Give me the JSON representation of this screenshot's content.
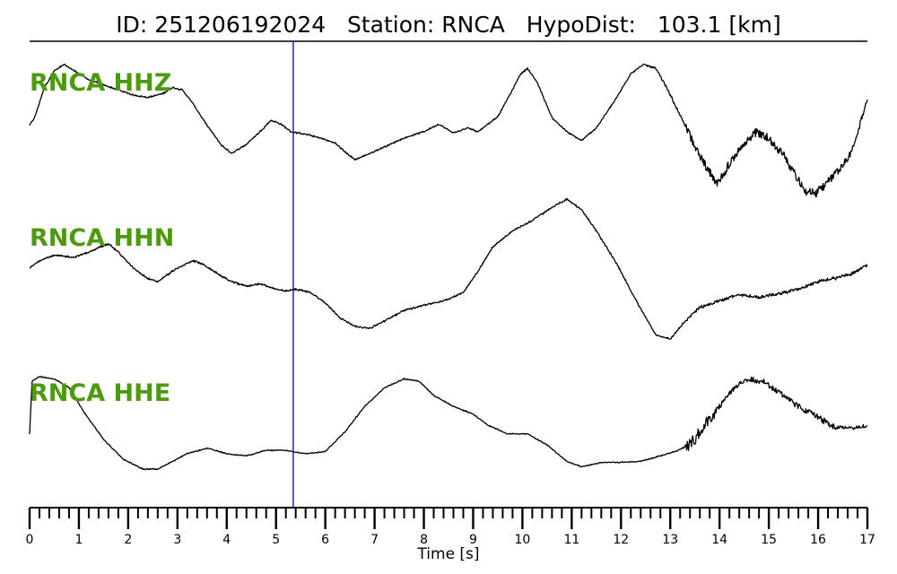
{
  "header": {
    "id_label": "ID:",
    "id_value": "251206192024",
    "station_label": "Station:",
    "station_value": "RNCA",
    "dist_label": "HypoDist:",
    "dist_value": "103.1",
    "dist_unit": "[km]"
  },
  "colors": {
    "trace": "#000000",
    "label": "#4c9a0e",
    "marker": "#1f1fd6"
  },
  "chart_data": {
    "type": "line",
    "xlabel": "Time [s]",
    "xlim": [
      0,
      17
    ],
    "major_ticks": [
      0,
      1,
      2,
      3,
      4,
      5,
      6,
      7,
      8,
      9,
      10,
      11,
      12,
      13,
      14,
      15,
      16,
      17
    ],
    "minor_tick_step": 0.2,
    "marker_time": 5.35,
    "series": [
      {
        "name": "RNCA HHZ",
        "noise": [
          [
            0,
            12.5,
            0.05
          ],
          [
            12.5,
            13.3,
            0.15
          ],
          [
            13.3,
            16.3,
            0.7
          ],
          [
            16.3,
            17,
            0.5
          ]
        ],
        "points": [
          [
            0,
            0.52
          ],
          [
            0.1,
            0.58
          ],
          [
            0.3,
            0.82
          ],
          [
            0.5,
            0.95
          ],
          [
            0.7,
            1.0
          ],
          [
            1.0,
            0.93
          ],
          [
            1.2,
            0.88
          ],
          [
            1.5,
            0.84
          ],
          [
            1.8,
            0.8
          ],
          [
            2.1,
            0.76
          ],
          [
            2.4,
            0.74
          ],
          [
            2.7,
            0.77
          ],
          [
            2.9,
            0.82
          ],
          [
            3.1,
            0.8
          ],
          [
            3.3,
            0.7
          ],
          [
            3.6,
            0.52
          ],
          [
            3.9,
            0.36
          ],
          [
            4.1,
            0.3
          ],
          [
            4.4,
            0.37
          ],
          [
            4.7,
            0.48
          ],
          [
            4.9,
            0.56
          ],
          [
            5.1,
            0.53
          ],
          [
            5.3,
            0.47
          ],
          [
            5.6,
            0.45
          ],
          [
            5.9,
            0.42
          ],
          [
            6.2,
            0.38
          ],
          [
            6.4,
            0.31
          ],
          [
            6.6,
            0.25
          ],
          [
            6.8,
            0.28
          ],
          [
            7.2,
            0.35
          ],
          [
            7.6,
            0.42
          ],
          [
            8.0,
            0.47
          ],
          [
            8.3,
            0.53
          ],
          [
            8.6,
            0.46
          ],
          [
            8.9,
            0.5
          ],
          [
            9.1,
            0.47
          ],
          [
            9.5,
            0.59
          ],
          [
            9.8,
            0.8
          ],
          [
            9.95,
            0.92
          ],
          [
            10.1,
            0.97
          ],
          [
            10.3,
            0.86
          ],
          [
            10.6,
            0.58
          ],
          [
            10.9,
            0.47
          ],
          [
            11.2,
            0.4
          ],
          [
            11.5,
            0.5
          ],
          [
            11.9,
            0.73
          ],
          [
            12.2,
            0.93
          ],
          [
            12.45,
            1.0
          ],
          [
            12.7,
            0.97
          ],
          [
            12.9,
            0.84
          ],
          [
            13.2,
            0.6
          ],
          [
            13.5,
            0.35
          ],
          [
            13.75,
            0.18
          ],
          [
            13.95,
            0.05
          ],
          [
            14.2,
            0.22
          ],
          [
            14.5,
            0.38
          ],
          [
            14.75,
            0.47
          ],
          [
            15.0,
            0.42
          ],
          [
            15.3,
            0.28
          ],
          [
            15.55,
            0.12
          ],
          [
            15.75,
            0.0
          ],
          [
            15.95,
            -0.02
          ],
          [
            16.2,
            0.08
          ],
          [
            16.5,
            0.2
          ],
          [
            16.7,
            0.33
          ],
          [
            16.9,
            0.6
          ],
          [
            17.0,
            0.72
          ]
        ]
      },
      {
        "name": "RNCA HHN",
        "noise": [
          [
            0,
            13.2,
            0.07
          ],
          [
            13.2,
            17,
            0.2
          ]
        ],
        "points": [
          [
            0,
            0.35
          ],
          [
            0.2,
            0.42
          ],
          [
            0.5,
            0.47
          ],
          [
            0.9,
            0.45
          ],
          [
            1.2,
            0.5
          ],
          [
            1.6,
            0.58
          ],
          [
            1.8,
            0.5
          ],
          [
            2.1,
            0.35
          ],
          [
            2.4,
            0.25
          ],
          [
            2.6,
            0.22
          ],
          [
            2.9,
            0.32
          ],
          [
            3.3,
            0.42
          ],
          [
            3.5,
            0.39
          ],
          [
            3.8,
            0.3
          ],
          [
            4.1,
            0.22
          ],
          [
            4.4,
            0.18
          ],
          [
            4.7,
            0.2
          ],
          [
            5.0,
            0.15
          ],
          [
            5.2,
            0.13
          ],
          [
            5.4,
            0.15
          ],
          [
            5.7,
            0.12
          ],
          [
            6.0,
            0.02
          ],
          [
            6.3,
            -0.12
          ],
          [
            6.6,
            -0.2
          ],
          [
            6.9,
            -0.22
          ],
          [
            7.2,
            -0.15
          ],
          [
            7.6,
            -0.05
          ],
          [
            8.0,
            0.0
          ],
          [
            8.4,
            0.04
          ],
          [
            8.8,
            0.12
          ],
          [
            9.1,
            0.32
          ],
          [
            9.4,
            0.55
          ],
          [
            9.8,
            0.7
          ],
          [
            10.2,
            0.8
          ],
          [
            10.6,
            0.92
          ],
          [
            10.9,
            1.0
          ],
          [
            11.2,
            0.9
          ],
          [
            11.5,
            0.7
          ],
          [
            11.9,
            0.4
          ],
          [
            12.3,
            0.05
          ],
          [
            12.7,
            -0.28
          ],
          [
            13.0,
            -0.32
          ],
          [
            13.3,
            -0.15
          ],
          [
            13.6,
            -0.02
          ],
          [
            14.0,
            0.04
          ],
          [
            14.4,
            0.1
          ],
          [
            14.8,
            0.07
          ],
          [
            15.2,
            0.11
          ],
          [
            15.6,
            0.15
          ],
          [
            16.0,
            0.22
          ],
          [
            16.4,
            0.26
          ],
          [
            16.7,
            0.3
          ],
          [
            17.0,
            0.38
          ]
        ]
      },
      {
        "name": "RNCA HHE",
        "noise": [
          [
            0,
            13.3,
            0.05
          ],
          [
            13.3,
            13.9,
            1.4
          ],
          [
            13.9,
            14.6,
            0.6
          ],
          [
            14.6,
            16.4,
            0.65
          ],
          [
            16.4,
            17,
            0.4
          ]
        ],
        "points": [
          [
            0,
            0.3
          ],
          [
            0.05,
            0.78
          ],
          [
            0.2,
            0.82
          ],
          [
            0.5,
            0.8
          ],
          [
            0.8,
            0.72
          ],
          [
            1.1,
            0.5
          ],
          [
            1.5,
            0.25
          ],
          [
            1.9,
            0.07
          ],
          [
            2.3,
            -0.02
          ],
          [
            2.6,
            -0.02
          ],
          [
            2.9,
            0.05
          ],
          [
            3.2,
            0.12
          ],
          [
            3.6,
            0.17
          ],
          [
            4.0,
            0.12
          ],
          [
            4.4,
            0.1
          ],
          [
            4.8,
            0.15
          ],
          [
            5.2,
            0.15
          ],
          [
            5.6,
            0.12
          ],
          [
            6.0,
            0.14
          ],
          [
            6.4,
            0.32
          ],
          [
            6.8,
            0.55
          ],
          [
            7.2,
            0.72
          ],
          [
            7.6,
            0.8
          ],
          [
            7.9,
            0.78
          ],
          [
            8.2,
            0.65
          ],
          [
            8.6,
            0.55
          ],
          [
            9.0,
            0.48
          ],
          [
            9.3,
            0.38
          ],
          [
            9.7,
            0.3
          ],
          [
            10.1,
            0.3
          ],
          [
            10.5,
            0.2
          ],
          [
            10.9,
            0.05
          ],
          [
            11.2,
            0.0
          ],
          [
            11.6,
            0.04
          ],
          [
            12.0,
            0.04
          ],
          [
            12.4,
            0.05
          ],
          [
            12.8,
            0.1
          ],
          [
            13.1,
            0.14
          ],
          [
            13.4,
            0.2
          ],
          [
            13.7,
            0.38
          ],
          [
            14.0,
            0.55
          ],
          [
            14.3,
            0.72
          ],
          [
            14.6,
            0.8
          ],
          [
            14.9,
            0.77
          ],
          [
            15.2,
            0.68
          ],
          [
            15.6,
            0.55
          ],
          [
            16.0,
            0.45
          ],
          [
            16.3,
            0.37
          ],
          [
            16.7,
            0.35
          ],
          [
            17.0,
            0.38
          ]
        ]
      }
    ]
  }
}
